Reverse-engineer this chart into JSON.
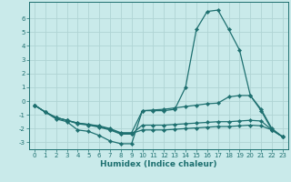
{
  "title": "",
  "xlabel": "Humidex (Indice chaleur)",
  "ylabel": "",
  "background_color": "#c9eaea",
  "grid_color": "#afd4d4",
  "line_color": "#1e7070",
  "xlim": [
    -0.5,
    23.5
  ],
  "ylim": [
    -3.5,
    7.2
  ],
  "yticks": [
    -3,
    -2,
    -1,
    0,
    1,
    2,
    3,
    4,
    5,
    6
  ],
  "xticks": [
    0,
    1,
    2,
    3,
    4,
    5,
    6,
    7,
    8,
    9,
    10,
    11,
    12,
    13,
    14,
    15,
    16,
    17,
    18,
    19,
    20,
    21,
    22,
    23
  ],
  "lines": [
    {
      "x": [
        0,
        1,
        2,
        3,
        4,
        5,
        6,
        7,
        8,
        9,
        10,
        11,
        12,
        13,
        14,
        15,
        16,
        17,
        18,
        19,
        20,
        21,
        22,
        23
      ],
      "y": [
        -0.3,
        -0.8,
        -1.3,
        -1.5,
        -2.1,
        -2.2,
        -2.5,
        -2.9,
        -3.1,
        -3.1,
        -0.7,
        -0.7,
        -0.7,
        -0.6,
        1.0,
        5.2,
        6.5,
        6.6,
        5.2,
        3.7,
        0.4,
        -0.7,
        -2.1,
        -2.6
      ]
    },
    {
      "x": [
        0,
        1,
        2,
        3,
        4,
        5,
        6,
        7,
        8,
        9,
        10,
        11,
        12,
        13,
        14,
        15,
        16,
        17,
        18,
        19,
        20,
        21,
        22,
        23
      ],
      "y": [
        -0.3,
        -0.8,
        -1.2,
        -1.4,
        -1.6,
        -1.7,
        -1.8,
        -2.0,
        -2.3,
        -2.3,
        -0.7,
        -0.65,
        -0.6,
        -0.5,
        -0.4,
        -0.3,
        -0.2,
        -0.15,
        0.3,
        0.4,
        0.4,
        -0.6,
        -2.0,
        -2.6
      ]
    },
    {
      "x": [
        0,
        1,
        2,
        3,
        4,
        5,
        6,
        7,
        8,
        9,
        10,
        11,
        12,
        13,
        14,
        15,
        16,
        17,
        18,
        19,
        20,
        21,
        22,
        23
      ],
      "y": [
        -0.3,
        -0.8,
        -1.2,
        -1.4,
        -1.65,
        -1.75,
        -1.9,
        -2.1,
        -2.4,
        -2.4,
        -1.75,
        -1.75,
        -1.75,
        -1.7,
        -1.65,
        -1.6,
        -1.55,
        -1.5,
        -1.5,
        -1.45,
        -1.4,
        -1.45,
        -2.1,
        -2.6
      ]
    },
    {
      "x": [
        0,
        1,
        2,
        3,
        4,
        5,
        6,
        7,
        8,
        9,
        10,
        11,
        12,
        13,
        14,
        15,
        16,
        17,
        18,
        19,
        20,
        21,
        22,
        23
      ],
      "y": [
        -0.3,
        -0.8,
        -1.2,
        -1.4,
        -1.6,
        -1.7,
        -1.85,
        -2.05,
        -2.35,
        -2.35,
        -2.1,
        -2.1,
        -2.1,
        -2.05,
        -2.0,
        -1.95,
        -1.9,
        -1.85,
        -1.85,
        -1.8,
        -1.75,
        -1.8,
        -2.1,
        -2.6
      ]
    }
  ],
  "markersize": 2.2,
  "linewidth": 0.9,
  "xlabel_fontsize": 6.5,
  "tick_fontsize": 5.0
}
